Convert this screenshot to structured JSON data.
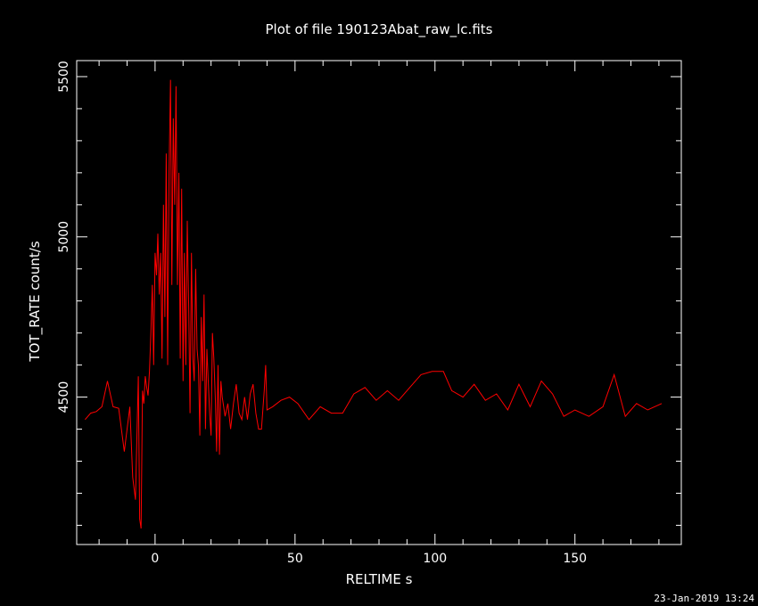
{
  "chart_data": {
    "type": "line",
    "title": "Plot of file 190123Abat_raw_lc.fits",
    "xlabel": "RELTIME  s",
    "ylabel": "TOT_RATE  count/s",
    "xlim": [
      -28,
      188
    ],
    "ylim": [
      4040,
      5550
    ],
    "x_ticks": [
      0,
      50,
      100,
      150
    ],
    "y_ticks": [
      4500,
      5000,
      5500
    ],
    "grid": false,
    "line_color": "#ff0000",
    "axis_color": "#ffffff",
    "background": "#000000",
    "series": [
      {
        "points": [
          [
            -25,
            4430
          ],
          [
            -23,
            4450
          ],
          [
            -21,
            4455
          ],
          [
            -19,
            4470
          ],
          [
            -17,
            4550
          ],
          [
            -15,
            4470
          ],
          [
            -13,
            4465
          ],
          [
            -11,
            4330
          ],
          [
            -10,
            4400
          ],
          [
            -9,
            4470
          ],
          [
            -8,
            4250
          ],
          [
            -7,
            4180
          ],
          [
            -6,
            4565
          ],
          [
            -5.5,
            4120
          ],
          [
            -5,
            4090
          ],
          [
            -4.5,
            4520
          ],
          [
            -4,
            4480
          ],
          [
            -3.5,
            4565
          ],
          [
            -3,
            4530
          ],
          [
            -2.5,
            4505
          ],
          [
            -2,
            4580
          ],
          [
            -1.5,
            4700
          ],
          [
            -1,
            4850
          ],
          [
            -0.5,
            4600
          ],
          [
            0,
            4950
          ],
          [
            0.5,
            4880
          ],
          [
            1,
            5010
          ],
          [
            1.5,
            4820
          ],
          [
            2,
            4950
          ],
          [
            2.5,
            4620
          ],
          [
            3,
            5100
          ],
          [
            3.5,
            4750
          ],
          [
            4,
            5260
          ],
          [
            4.5,
            4600
          ],
          [
            5,
            5200
          ],
          [
            5.5,
            5490
          ],
          [
            6,
            4850
          ],
          [
            6.5,
            5370
          ],
          [
            7,
            5100
          ],
          [
            7.5,
            5470
          ],
          [
            8,
            4850
          ],
          [
            8.5,
            5200
          ],
          [
            9,
            4620
          ],
          [
            9.5,
            5150
          ],
          [
            10,
            4550
          ],
          [
            10.5,
            4950
          ],
          [
            11,
            4600
          ],
          [
            11.5,
            5050
          ],
          [
            12,
            4780
          ],
          [
            12.5,
            4450
          ],
          [
            13,
            4950
          ],
          [
            13.5,
            4620
          ],
          [
            14,
            4550
          ],
          [
            14.5,
            4900
          ],
          [
            15,
            4650
          ],
          [
            15.5,
            4600
          ],
          [
            16,
            4380
          ],
          [
            16.5,
            4750
          ],
          [
            17,
            4550
          ],
          [
            17.5,
            4820
          ],
          [
            18,
            4400
          ],
          [
            18.5,
            4650
          ],
          [
            19,
            4550
          ],
          [
            19.5,
            4450
          ],
          [
            20,
            4380
          ],
          [
            20.5,
            4700
          ],
          [
            21,
            4620
          ],
          [
            21.5,
            4500
          ],
          [
            22,
            4330
          ],
          [
            22.5,
            4600
          ],
          [
            23,
            4320
          ],
          [
            23.5,
            4550
          ],
          [
            24,
            4500
          ],
          [
            25,
            4440
          ],
          [
            26,
            4480
          ],
          [
            27,
            4400
          ],
          [
            28,
            4480
          ],
          [
            29,
            4540
          ],
          [
            30,
            4450
          ],
          [
            31,
            4430
          ],
          [
            32,
            4500
          ],
          [
            33,
            4430
          ],
          [
            34,
            4510
          ],
          [
            35,
            4540
          ],
          [
            36,
            4450
          ],
          [
            37,
            4400
          ],
          [
            38,
            4400
          ],
          [
            39,
            4520
          ],
          [
            39.5,
            4600
          ],
          [
            40,
            4460
          ],
          [
            42,
            4470
          ],
          [
            45,
            4490
          ],
          [
            48,
            4500
          ],
          [
            51,
            4480
          ],
          [
            55,
            4430
          ],
          [
            59,
            4470
          ],
          [
            63,
            4450
          ],
          [
            67,
            4450
          ],
          [
            71,
            4510
          ],
          [
            75,
            4530
          ],
          [
            79,
            4490
          ],
          [
            83,
            4520
          ],
          [
            87,
            4490
          ],
          [
            91,
            4530
          ],
          [
            95,
            4570
          ],
          [
            99,
            4580
          ],
          [
            103,
            4580
          ],
          [
            106,
            4520
          ],
          [
            110,
            4500
          ],
          [
            114,
            4540
          ],
          [
            118,
            4490
          ],
          [
            122,
            4510
          ],
          [
            126,
            4460
          ],
          [
            130,
            4540
          ],
          [
            134,
            4470
          ],
          [
            138,
            4550
          ],
          [
            142,
            4510
          ],
          [
            146,
            4440
          ],
          [
            150,
            4460
          ],
          [
            155,
            4440
          ],
          [
            160,
            4470
          ],
          [
            164,
            4570
          ],
          [
            168,
            4440
          ],
          [
            172,
            4480
          ],
          [
            176,
            4460
          ],
          [
            181,
            4480
          ]
        ]
      }
    ]
  },
  "footer": {
    "timestamp": "23-Jan-2019 13:24"
  }
}
